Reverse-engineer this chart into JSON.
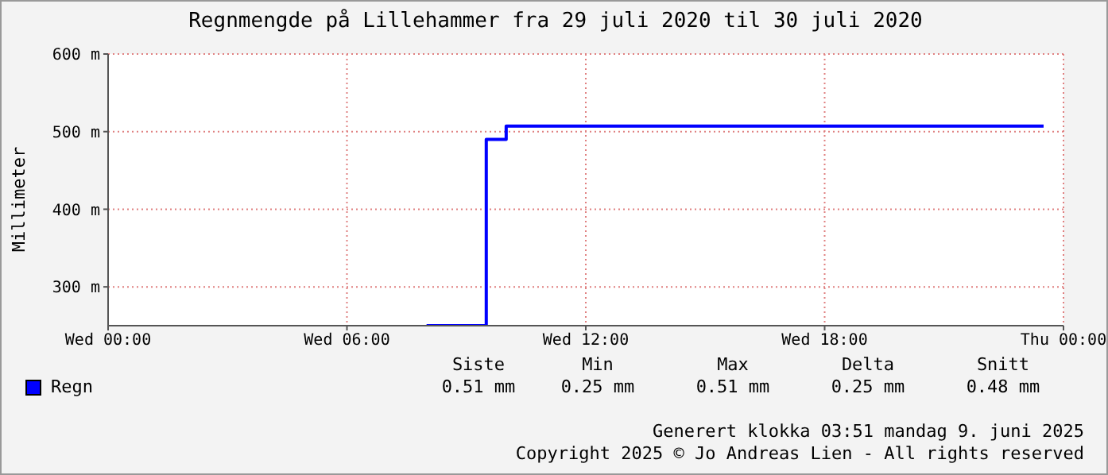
{
  "chart_data": {
    "type": "step",
    "title": "Regnmengde på Lillehammer fra 29 juli 2020 til 30 juli 2020",
    "ylabel": "Millimeter",
    "x": [
      "2020-07-29T08:00",
      "2020-07-29T09:30",
      "2020-07-29T10:00",
      "2020-07-29T23:30"
    ],
    "series": [
      {
        "name": "Regn",
        "color": "#0000ff",
        "values": [
          250,
          490,
          507,
          507
        ]
      }
    ],
    "xlim": [
      "2020-07-29T00:00",
      "2020-07-30T00:00"
    ],
    "xticks": [
      {
        "value": "2020-07-29T00:00",
        "label": "Wed 00:00"
      },
      {
        "value": "2020-07-29T06:00",
        "label": "Wed 06:00"
      },
      {
        "value": "2020-07-29T12:00",
        "label": "Wed 12:00"
      },
      {
        "value": "2020-07-29T18:00",
        "label": "Wed 18:00"
      },
      {
        "value": "2020-07-30T00:00",
        "label": "Thu 00:00"
      }
    ],
    "ylim": [
      250,
      600
    ],
    "yticks": [
      {
        "value": 300,
        "label": "300 m"
      },
      {
        "value": 400,
        "label": "400 m"
      },
      {
        "value": 500,
        "label": "500 m"
      },
      {
        "value": 600,
        "label": "600 m"
      }
    ],
    "grid": true,
    "legend": "bottom left",
    "annotations": [
      "Siste",
      "Min",
      "Max",
      "Delta",
      "Snitt",
      "0.51 mm",
      "0.25 mm",
      "0.51 mm",
      "0.25 mm",
      "0.48 mm",
      "Generert klokka 03:51 mandag 9. juni 2025",
      "Copyright 2025 © Jo Andreas Lien - All rights reserved"
    ]
  }
}
